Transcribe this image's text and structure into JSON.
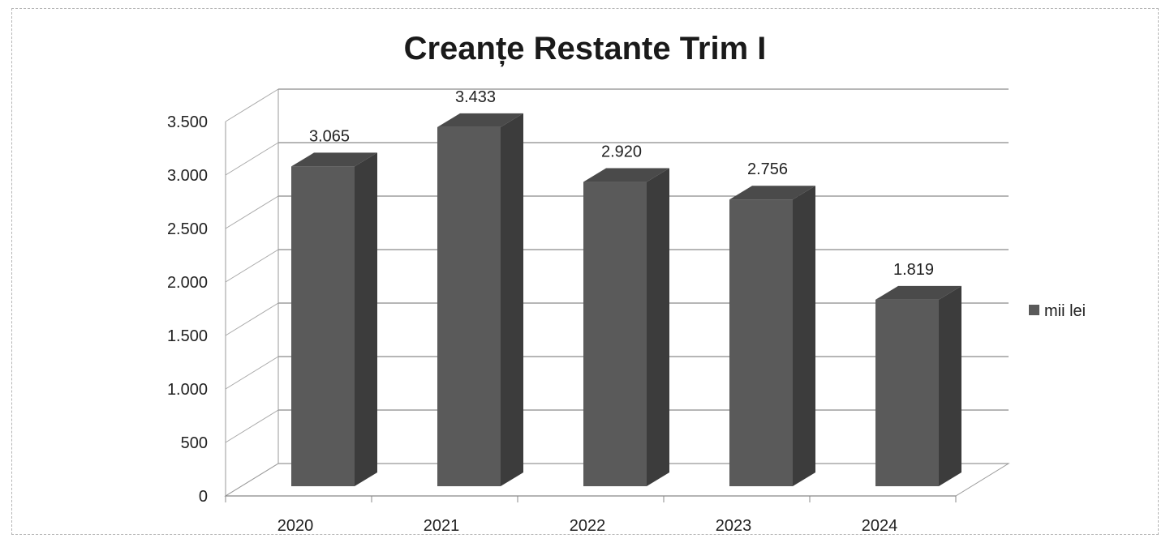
{
  "chart_data": {
    "type": "bar",
    "style": "3d-column",
    "title": "Creanțe Restante Trim I",
    "categories": [
      "2020",
      "2021",
      "2022",
      "2023",
      "2024"
    ],
    "series": [
      {
        "name": "mii lei",
        "values": [
          3065,
          3433,
          2920,
          2756,
          1819
        ],
        "color": "#5a5a5a"
      }
    ],
    "data_labels": [
      "3.065",
      "3.433",
      "2.920",
      "2.756",
      "1.819"
    ],
    "y_ticks": [
      0,
      500,
      1000,
      1500,
      2000,
      2500,
      3000,
      3500
    ],
    "y_tick_labels": [
      "0",
      "500",
      "1.000",
      "1.500",
      "2.000",
      "2.500",
      "3.000",
      "3.500"
    ],
    "ylim": [
      0,
      3500
    ],
    "xlabel": "",
    "ylabel": "",
    "grid": true,
    "legend": {
      "position": "right",
      "entries": [
        "mii lei"
      ]
    }
  }
}
